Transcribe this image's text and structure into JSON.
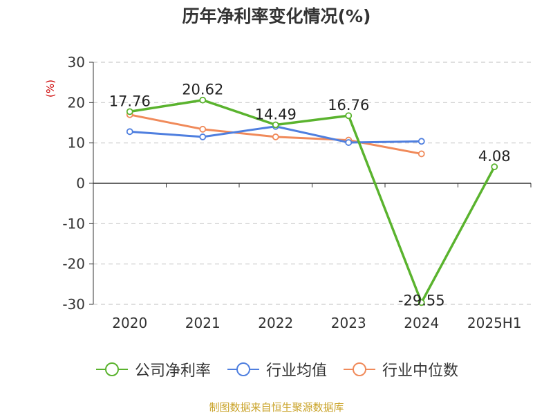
{
  "title": "历年净利率变化情况(%)",
  "source_note": "制图数据来自恒生聚源数据库",
  "colors": {
    "company": "#5ab32e",
    "industry_avg": "#4f7fdf",
    "industry_median": "#f08a5a",
    "ylabel": "#cc0000",
    "grid": "#cccccc",
    "axis": "#333333",
    "note": "#c9a227"
  },
  "chart_data": {
    "type": "line",
    "title": "历年净利率变化情况(%)",
    "xlabel": "",
    "ylabel": "(%)",
    "categories": [
      "2020",
      "2021",
      "2022",
      "2023",
      "2024",
      "2025H1"
    ],
    "ylim": [
      -30,
      30
    ],
    "yticks": [
      30,
      20,
      10,
      0,
      -10,
      -20,
      -30
    ],
    "grid": true,
    "legend_position": "bottom",
    "series": [
      {
        "name": "公司净利率",
        "color": "#5ab32e",
        "values": [
          17.76,
          20.62,
          14.49,
          16.76,
          -29.55,
          4.08
        ],
        "show_labels": true
      },
      {
        "name": "行业均值",
        "color": "#4f7fdf",
        "values": [
          12.8,
          11.5,
          14.1,
          10.1,
          10.4,
          null
        ],
        "show_labels": false
      },
      {
        "name": "行业中位数",
        "color": "#f08a5a",
        "values": [
          17.0,
          13.4,
          11.5,
          10.7,
          7.3,
          null
        ],
        "show_labels": false
      }
    ]
  }
}
